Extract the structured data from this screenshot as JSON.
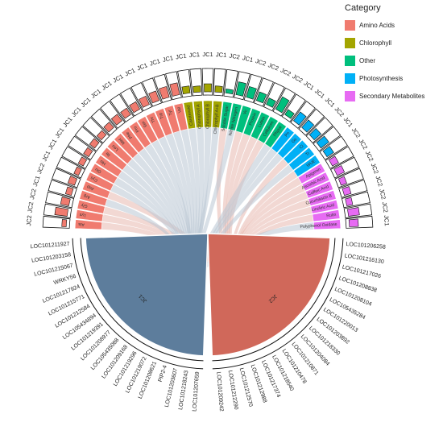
{
  "legend": {
    "title": "Category",
    "items": [
      {
        "label": "Amino Acids",
        "color": "#f07b6f"
      },
      {
        "label": "Chlorophyll",
        "color": "#a3a500"
      },
      {
        "label": "Other",
        "color": "#00bf7d"
      },
      {
        "label": "Photosynthesis",
        "color": "#00b0f6"
      },
      {
        "label": "Secondary Metabolites",
        "color": "#e76bf3"
      }
    ]
  },
  "chart_data": {
    "type": "chord",
    "metabolites": [
      {
        "name": "Ala",
        "category": "Amino Acids",
        "sample": "JC2",
        "value": 0.22
      },
      {
        "name": "Lys",
        "category": "Amino Acids",
        "sample": "JC2",
        "value": 0.62
      },
      {
        "name": "Gly",
        "category": "Amino Acids",
        "sample": "JC2",
        "value": 0.42
      },
      {
        "name": "Arg",
        "category": "Amino Acids",
        "sample": "JC1",
        "value": 0.3
      },
      {
        "name": "Asp",
        "category": "Amino Acids",
        "sample": "JC2",
        "value": 0.35
      },
      {
        "name": "Cys",
        "category": "Amino Acids",
        "sample": "JC1",
        "value": 0.25
      },
      {
        "name": "Glu",
        "category": "Amino Acids",
        "sample": "JC1",
        "value": 0.28
      },
      {
        "name": "His",
        "category": "Amino Acids",
        "sample": "JC1",
        "value": 0.3
      },
      {
        "name": "Ile",
        "category": "Amino Acids",
        "sample": "JC1",
        "value": 0.32
      },
      {
        "name": "Leu",
        "category": "Amino Acids",
        "sample": "JC1",
        "value": 0.3
      },
      {
        "name": "Met",
        "category": "Amino Acids",
        "sample": "JC1",
        "value": 0.35
      },
      {
        "name": "Phe",
        "category": "Amino Acids",
        "sample": "JC1",
        "value": 0.4
      },
      {
        "name": "Pro",
        "category": "Amino Acids",
        "sample": "JC1",
        "value": 0.38
      },
      {
        "name": "Ser",
        "category": "Amino Acids",
        "sample": "JC1",
        "value": 0.42
      },
      {
        "name": "Thr",
        "category": "Amino Acids",
        "sample": "JC1",
        "value": 0.45
      },
      {
        "name": "Trp",
        "category": "Amino Acids",
        "sample": "JC1",
        "value": 0.5
      },
      {
        "name": "Tyr",
        "category": "Amino Acids",
        "sample": "JC1",
        "value": 0.55
      },
      {
        "name": "Val",
        "category": "Amino Acids",
        "sample": "JC1",
        "value": 0.6
      },
      {
        "name": "Carotenoid",
        "category": "Chlorophyll",
        "sample": "JC1",
        "value": 0.35
      },
      {
        "name": "Chlorophyll A",
        "category": "Chlorophyll",
        "sample": "JC1",
        "value": 0.3
      },
      {
        "name": "Chlorophyll B",
        "category": "Chlorophyll",
        "sample": "JC1",
        "value": 0.4
      },
      {
        "name": "Chlorophyll A+B",
        "category": "Chlorophyll",
        "sample": "JC1",
        "value": 0.3
      },
      {
        "name": "Soluble Sugar",
        "category": "Other",
        "sample": "JC2",
        "value": 0.2
      },
      {
        "name": "Nitrate Nitrogen",
        "category": "Other",
        "sample": "JC1",
        "value": 0.65
      },
      {
        "name": "Vc",
        "category": "Other",
        "sample": "JC2",
        "value": 0.55
      },
      {
        "name": "Protein",
        "category": "Other",
        "sample": "JC2",
        "value": 0.45
      },
      {
        "name": "Lutein",
        "category": "Other",
        "sample": "JC2",
        "value": 0.35
      },
      {
        "name": "Cellulose",
        "category": "Other",
        "sample": "JC2",
        "value": 0.7
      },
      {
        "name": "Phytol",
        "category": "Other",
        "sample": "JC1",
        "value": 0.3
      },
      {
        "name": "Pn",
        "category": "Photosynthesis",
        "sample": "JC1",
        "value": 0.55
      },
      {
        "name": "Gs",
        "category": "Photosynthesis",
        "sample": "JC1",
        "value": 0.5
      },
      {
        "name": "Ci",
        "category": "Photosynthesis",
        "sample": "JC2",
        "value": 0.45
      },
      {
        "name": "Tr",
        "category": "Photosynthesis",
        "sample": "JC1",
        "value": 0.5
      },
      {
        "name": "WUE",
        "category": "Photosynthesis",
        "sample": "JC2",
        "value": 0.4
      },
      {
        "name": "Apigenin",
        "category": "Secondary Metabolites",
        "sample": "JC2",
        "value": 0.35
      },
      {
        "name": "Ascorbic Acid",
        "category": "Secondary Metabolites",
        "sample": "JC2",
        "value": 0.4
      },
      {
        "name": "Caffeic Acid",
        "category": "Secondary Metabolites",
        "sample": "JC2",
        "value": 0.3
      },
      {
        "name": "Cucurbitacin B",
        "category": "Secondary Metabolites",
        "sample": "JC2",
        "value": 0.35
      },
      {
        "name": "Linoleic Acid",
        "category": "Secondary Metabolites",
        "sample": "JC2",
        "value": 0.3
      },
      {
        "name": "Rutin",
        "category": "Secondary Metabolites",
        "sample": "JC2",
        "value": 0.55
      },
      {
        "name": "Polyphenol Oxidase",
        "category": "Secondary Metabolites",
        "sample": "JC1",
        "value": 0.45
      }
    ],
    "groups": [
      {
        "name": "JC1",
        "color": "#5d7d9c"
      },
      {
        "name": "JC2",
        "color": "#d0685a"
      }
    ],
    "genes_jc1": [
      "LOC101211927",
      "LOC101203158",
      "LOC101215067",
      "WRKY56",
      "LOC101217924",
      "LOC101215771",
      "LOC101212584",
      "LOC105434894",
      "LOC101219391",
      "LOC101208977",
      "LOC105435088",
      "LOC101209168",
      "LOC101219296",
      "LOC101219072",
      "LOC101208621",
      "PIP2-4",
      "LOC101203607",
      "LOC101218243",
      "LOC101207659"
    ],
    "genes_jc2": [
      "LOC101209242",
      "LOC101212290",
      "LOC101212570",
      "LOC101212988",
      "LOC101217374",
      "LOC101218540",
      "LOC101210478",
      "LOC101210871",
      "LOC101204084",
      "LOC101218330",
      "LOC101203892",
      "LOC101220013",
      "LOC105435284",
      "LOC101208104",
      "LOC101208838",
      "LOC101217026",
      "LOC101216130",
      "LOC101206258"
    ]
  }
}
